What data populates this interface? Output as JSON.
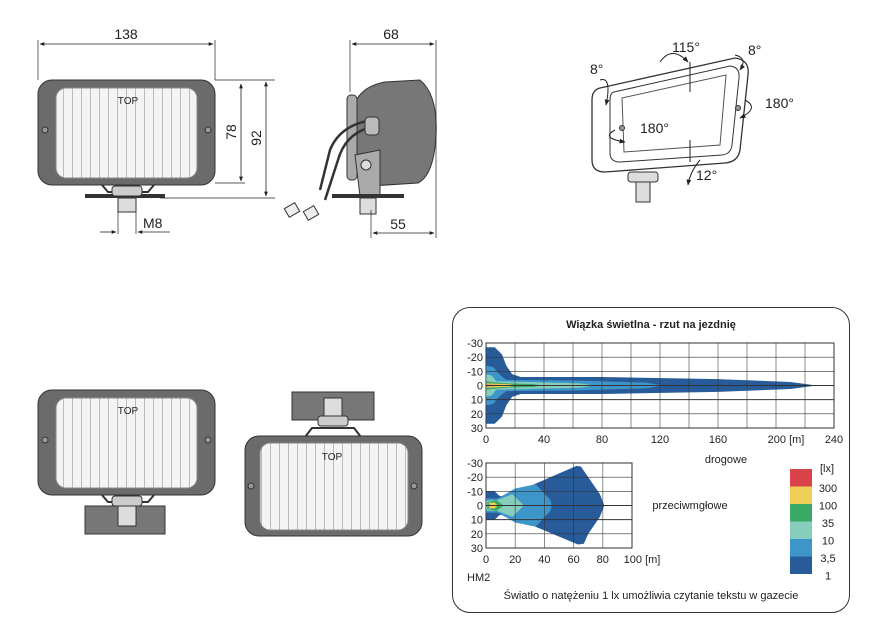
{
  "drawings": {
    "front_view": {
      "width_label": "138",
      "height_inner_label": "78",
      "height_outer_label": "92",
      "thread_label": "M8",
      "top_mark": "TOP"
    },
    "side_view": {
      "depth_label": "68",
      "mount_offset_label": "55"
    },
    "perspective_view": {
      "angles": [
        "115°",
        "8°",
        "8°",
        "180°",
        "180°",
        "12°"
      ]
    },
    "mount_variants": [
      {
        "top_mark": "TOP"
      },
      {
        "top_mark": "TOP"
      }
    ]
  },
  "chart_data": [
    {
      "type": "heatmap",
      "title": "Wiązka świetlna - rzut na jezdnię",
      "xlabel": "drogowe",
      "x_unit": "[m]",
      "xlim": [
        0,
        240
      ],
      "ylim": [
        -30,
        30
      ],
      "x_ticks": [
        "0",
        "40",
        "80",
        "120",
        "160",
        "200",
        "240"
      ],
      "y_ticks": [
        "-30",
        "-20",
        "-10",
        "0",
        "10",
        "20",
        "30"
      ],
      "grid": true,
      "contours": [
        {
          "level": "1",
          "points": [
            [
              0,
              -27
            ],
            [
              6,
              -27
            ],
            [
              11,
              -22
            ],
            [
              14,
              -14
            ],
            [
              18,
              -8
            ],
            [
              24,
              -6
            ],
            [
              80,
              -6
            ],
            [
              160,
              -4.5
            ],
            [
              210,
              -2.5
            ],
            [
              228,
              0
            ],
            [
              210,
              2.5
            ],
            [
              160,
              4.5
            ],
            [
              80,
              6
            ],
            [
              24,
              6
            ],
            [
              18,
              8
            ],
            [
              14,
              14
            ],
            [
              11,
              22
            ],
            [
              6,
              27
            ],
            [
              0,
              27
            ]
          ]
        },
        {
          "level": "3,5",
          "points": [
            [
              0,
              -14
            ],
            [
              5,
              -13
            ],
            [
              9,
              -8
            ],
            [
              14,
              -4
            ],
            [
              60,
              -3.5
            ],
            [
              110,
              -2
            ],
            [
              123,
              0
            ],
            [
              110,
              2
            ],
            [
              60,
              3.5
            ],
            [
              14,
              4
            ],
            [
              9,
              8
            ],
            [
              5,
              13
            ],
            [
              0,
              14
            ]
          ]
        },
        {
          "level": "10",
          "points": [
            [
              0,
              -8
            ],
            [
              4,
              -7
            ],
            [
              7,
              -3
            ],
            [
              30,
              -2.5
            ],
            [
              65,
              -1.5
            ],
            [
              75,
              0
            ],
            [
              65,
              1.5
            ],
            [
              30,
              2.5
            ],
            [
              7,
              3
            ],
            [
              4,
              7
            ],
            [
              0,
              8
            ]
          ]
        },
        {
          "level": "35",
          "points": [
            [
              0,
              -3
            ],
            [
              4,
              -2.5
            ],
            [
              15,
              -1.5
            ],
            [
              33,
              -1
            ],
            [
              38,
              0
            ],
            [
              33,
              1
            ],
            [
              15,
              1.5
            ],
            [
              4,
              2.5
            ],
            [
              0,
              3
            ]
          ]
        },
        {
          "level": "100",
          "points": [
            [
              0,
              -1.5
            ],
            [
              8,
              -1.2
            ],
            [
              17,
              -0.8
            ],
            [
              20,
              0
            ],
            [
              17,
              0.8
            ],
            [
              8,
              1.2
            ],
            [
              0,
              1.5
            ]
          ]
        },
        {
          "level": "300",
          "points": [
            [
              0,
              -0.6
            ],
            [
              12,
              -0.3
            ],
            [
              13,
              0
            ],
            [
              12,
              0.3
            ],
            [
              0,
              0.6
            ]
          ]
        }
      ]
    },
    {
      "type": "heatmap",
      "xlabel": "przeciwmgłowe",
      "x_unit": "[m]",
      "model": "HM2",
      "xlim": [
        0,
        100
      ],
      "ylim": [
        -30,
        30
      ],
      "x_ticks": [
        "0",
        "20",
        "40",
        "60",
        "80",
        "100"
      ],
      "y_ticks": [
        "-30",
        "-20",
        "-10",
        "0",
        "10",
        "20",
        "30"
      ],
      "grid": true,
      "contours": [
        {
          "level": "1",
          "points": [
            [
              0,
              -10
            ],
            [
              6,
              -10
            ],
            [
              9,
              -7
            ],
            [
              13,
              -6
            ],
            [
              62,
              -28
            ],
            [
              65,
              -27.5
            ],
            [
              70,
              -20
            ],
            [
              78,
              -8
            ],
            [
              81,
              0
            ],
            [
              78,
              8
            ],
            [
              70,
              20
            ],
            [
              67,
              27
            ],
            [
              63,
              27.5
            ],
            [
              13,
              6
            ],
            [
              9,
              7
            ],
            [
              6,
              10
            ],
            [
              0,
              10
            ]
          ]
        },
        {
          "level": "3,5",
          "points": [
            [
              0,
              -5
            ],
            [
              8,
              -5
            ],
            [
              20,
              -12
            ],
            [
              34,
              -15
            ],
            [
              44,
              -4
            ],
            [
              45,
              0
            ],
            [
              44,
              4
            ],
            [
              34,
              15
            ],
            [
              20,
              12
            ],
            [
              8,
              5
            ],
            [
              0,
              5
            ]
          ]
        },
        {
          "level": "10",
          "points": [
            [
              0,
              -3.5
            ],
            [
              8,
              -4
            ],
            [
              18,
              -8
            ],
            [
              26,
              0
            ],
            [
              18,
              8
            ],
            [
              8,
              4
            ],
            [
              0,
              3.5
            ]
          ]
        },
        {
          "level": "35",
          "points": [
            [
              1,
              -2.5
            ],
            [
              7,
              -4
            ],
            [
              12,
              0
            ],
            [
              7,
              4
            ],
            [
              1,
              2.5
            ]
          ]
        },
        {
          "level": "100",
          "points": [
            [
              2,
              -2
            ],
            [
              6,
              -2
            ],
            [
              8,
              0
            ],
            [
              6,
              2
            ],
            [
              2,
              2
            ]
          ]
        },
        {
          "level": "300",
          "points": [
            [
              2,
              -0.6
            ],
            [
              5,
              -0.3
            ],
            [
              6,
              0
            ],
            [
              5,
              0.3
            ],
            [
              2,
              0.6
            ]
          ]
        }
      ]
    }
  ],
  "legend": {
    "unit": "[lx]",
    "items": [
      {
        "label": "300",
        "color": "#d9434a"
      },
      {
        "label": "100",
        "color": "#f0cf57"
      },
      {
        "label": "35",
        "color": "#3aa966"
      },
      {
        "label": "10",
        "color": "#86cdbb"
      },
      {
        "label": "3,5",
        "color": "#3e95c9"
      },
      {
        "label": "1",
        "color": "#275b9a"
      }
    ]
  },
  "level_colors": {
    "1": "#275b9a",
    "3,5": "#3e95c9",
    "10": "#86cdbb",
    "35": "#3aa966",
    "100": "#f0cf57",
    "300": "#d9434a"
  },
  "footnote": "Światło o natężeniu 1 lx umożliwia czytanie tekstu w gazecie"
}
